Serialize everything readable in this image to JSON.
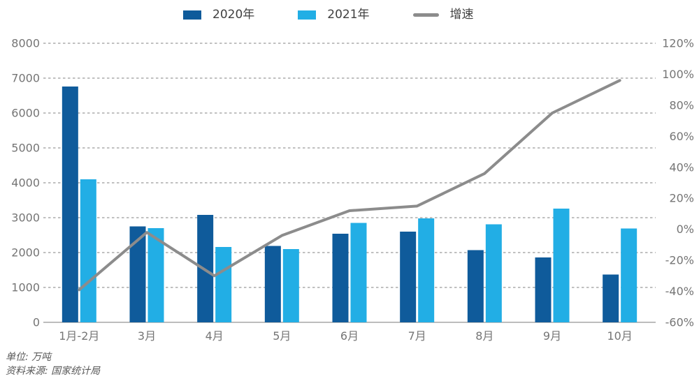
{
  "legend": {
    "items": [
      {
        "label": "2020年",
        "color": "#0F5B9B",
        "swatch": "square"
      },
      {
        "label": "2021年",
        "color": "#22AEE5",
        "swatch": "square"
      },
      {
        "label": "增速",
        "color": "#8C8C8C",
        "swatch": "line"
      }
    ]
  },
  "footer": {
    "unit": "单位: 万吨",
    "source": "资料来源: 国家统计局"
  },
  "colors": {
    "bar_2020": "#0F5B9B",
    "bar_2021": "#22AEE5",
    "growth_line": "#8C8C8C",
    "gridline": "#ABABAB",
    "baseline": "#A6A6A6",
    "tick_label": "#757575",
    "background": "#FFFFFF"
  },
  "chart_data": {
    "type": "bar",
    "subtype": "grouped bars with secondary-axis line",
    "categories": [
      "1月-2月",
      "3月",
      "4月",
      "5月",
      "6月",
      "7月",
      "8月",
      "9月",
      "10月"
    ],
    "series": [
      {
        "name": "2020年",
        "type": "bar",
        "axis": "left",
        "color": "#0F5B9B",
        "values": [
          6760,
          2750,
          3080,
          2190,
          2540,
          2600,
          2070,
          1860,
          1370
        ]
      },
      {
        "name": "2021年",
        "type": "bar",
        "axis": "left",
        "color": "#22AEE5",
        "values": [
          4100,
          2700,
          2160,
          2100,
          2850,
          2980,
          2810,
          3260,
          2690
        ]
      },
      {
        "name": "增速",
        "type": "line",
        "axis": "right",
        "color": "#8C8C8C",
        "values": [
          -39,
          -2,
          -30,
          -4,
          12,
          15,
          36,
          75,
          96
        ]
      }
    ],
    "left_axis": {
      "title": "",
      "unit": "万吨",
      "min": 0,
      "max": 8000,
      "ticks": [
        "8000",
        "7000",
        "6000",
        "5000",
        "4000",
        "3000",
        "2000",
        "1000",
        "0"
      ]
    },
    "right_axis": {
      "title": "",
      "unit": "%",
      "min": -60,
      "max": 120,
      "ticks": [
        "120%",
        "100%",
        "80%",
        "60%",
        "40%",
        "20%",
        "0%",
        "-20%",
        "-40%",
        "-60%"
      ]
    },
    "grid": "horizontal dashed",
    "legend_position": "top",
    "title": "",
    "xlabel": "",
    "ylabel": ""
  }
}
